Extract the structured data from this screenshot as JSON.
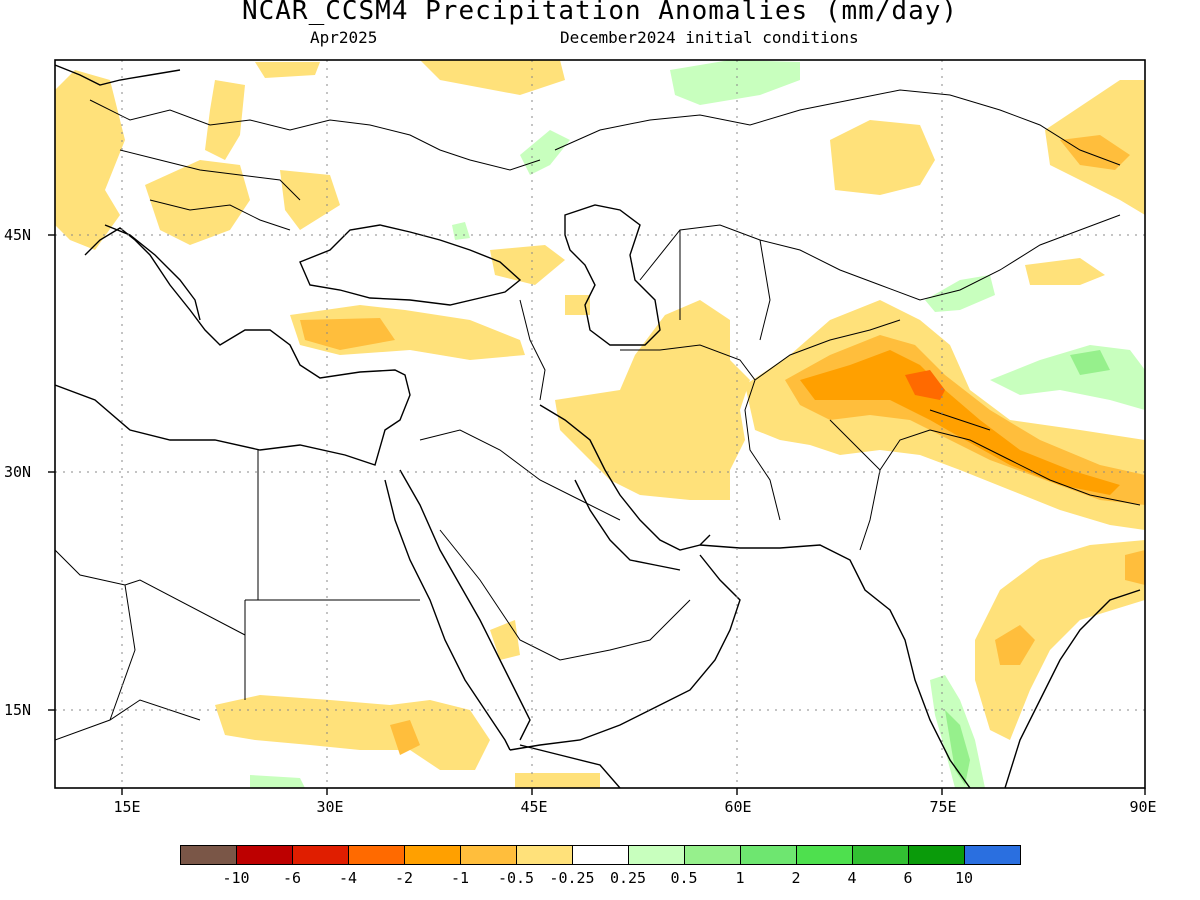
{
  "title": "NCAR_CCSM4 Precipitation Anomalies (mm/day)",
  "subtitle_left": "Apr2025",
  "subtitle_right": "December2024 initial conditions",
  "lat_labels": [
    "45N",
    "30N",
    "15N"
  ],
  "lon_labels": [
    "15E",
    "30E",
    "45E",
    "60E",
    "75E",
    "90E"
  ],
  "colorbar": {
    "colors": [
      "#7a5647",
      "#bd0000",
      "#e01e00",
      "#ff6a00",
      "#ffa000",
      "#ffbe3c",
      "#ffe17a",
      "#ffffff",
      "#c8ffbe",
      "#96f08c",
      "#6ee670",
      "#4ee04e",
      "#32c032",
      "#0a9b0a",
      "#2a6fe0"
    ],
    "labels": [
      "-10",
      "-6",
      "-4",
      "-2",
      "-1",
      "-0.5",
      "-0.25",
      "0.25",
      "0.5",
      "1",
      "2",
      "4",
      "6",
      "10"
    ]
  },
  "map": {
    "lon_range": [
      10,
      90
    ],
    "lat_range": [
      10,
      56
    ],
    "gridlines": "dotted",
    "dry_color": "#ffe17a",
    "dry2_color": "#ffbe3c",
    "dry3_color": "#ffa000",
    "wet_color": "#c8ffbe",
    "wet2_color": "#96f08c"
  }
}
